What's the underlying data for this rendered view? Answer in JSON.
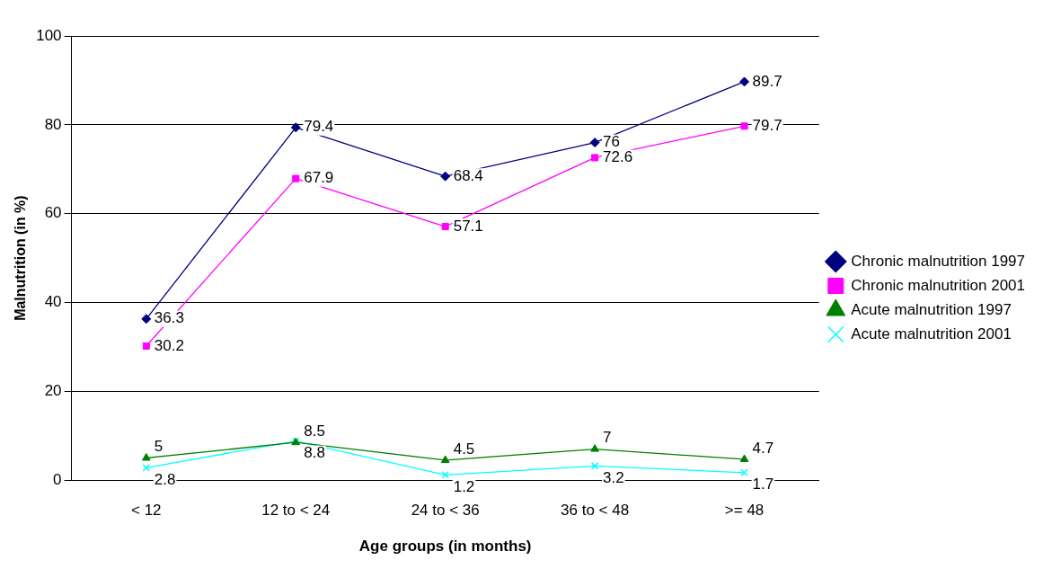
{
  "chart_data": {
    "type": "line",
    "xlabel": "Age groups (in months)",
    "ylabel": "Malnutrition (in %)",
    "categories": [
      "< 12",
      "12 to < 24",
      "24 to < 36",
      "36 to < 48",
      ">= 48"
    ],
    "series": [
      {
        "name": "Chronic malnutrition 1997",
        "color": "#000080",
        "marker": "diamond",
        "values": [
          36.3,
          79.4,
          68.4,
          76,
          89.7
        ]
      },
      {
        "name": "Chronic malnutrition 2001",
        "color": "#ff00ff",
        "marker": "square",
        "values": [
          30.2,
          67.9,
          57.1,
          72.6,
          79.7
        ]
      },
      {
        "name": "Acute malnutrition 1997",
        "color": "#008000",
        "marker": "triangle",
        "values": [
          5,
          8.5,
          4.5,
          7,
          4.7
        ]
      },
      {
        "name": "Acute malnutrition 2001",
        "color": "#00ffff",
        "marker": "cross",
        "values": [
          2.8,
          8.8,
          1.2,
          3.2,
          1.7
        ]
      }
    ],
    "ylim": [
      0,
      100
    ],
    "yticks": [
      0,
      20,
      40,
      60,
      80,
      100
    ],
    "grid": "y",
    "legend": "right",
    "data_labels": true
  }
}
